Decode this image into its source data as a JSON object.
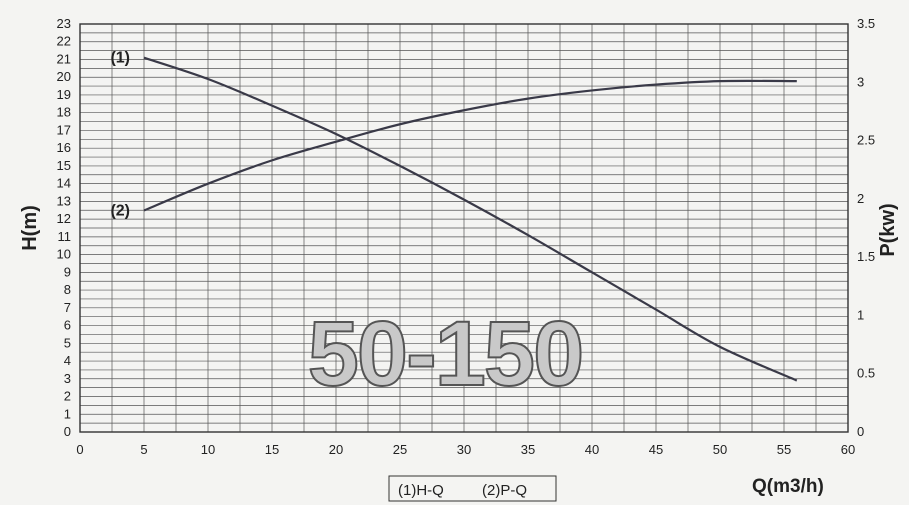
{
  "chart_data": {
    "type": "line",
    "x_title": "Q(m3/h)",
    "y_title": "H(m)",
    "y2_title": "P(kw)",
    "xlim": [
      0,
      60
    ],
    "ylim": [
      0,
      23
    ],
    "y2lim": [
      0,
      3.5
    ],
    "x_ticks": [
      "0",
      "5",
      "10",
      "15",
      "20",
      "25",
      "30",
      "35",
      "40",
      "45",
      "50",
      "55",
      "60"
    ],
    "y_ticks": [
      "0",
      "1",
      "2",
      "3",
      "4",
      "5",
      "6",
      "7",
      "8",
      "9",
      "10",
      "11",
      "12",
      "13",
      "14",
      "15",
      "16",
      "17",
      "18",
      "19",
      "20",
      "21",
      "22",
      "23"
    ],
    "y2_ticks": [
      "0",
      "0.5",
      "1",
      "1.5",
      "2",
      "2.5",
      "3",
      "3.5"
    ],
    "grid": true,
    "series": [
      {
        "name": "(1)H-Q",
        "label": "(1)",
        "axis": "left",
        "x": [
          5,
          10,
          15,
          20,
          25,
          30,
          35,
          40,
          45,
          50,
          56
        ],
        "y": [
          21.1,
          19.9,
          18.4,
          16.8,
          15.0,
          13.1,
          11.1,
          9.0,
          6.9,
          4.8,
          2.9
        ]
      },
      {
        "name": "(2)P-Q",
        "label": "(2)",
        "axis": "right",
        "x": [
          5,
          10,
          15,
          20,
          25,
          30,
          35,
          40,
          45,
          50,
          56
        ],
        "y": [
          1.9,
          2.13,
          2.33,
          2.49,
          2.64,
          2.76,
          2.86,
          2.93,
          2.98,
          3.01,
          3.01
        ]
      }
    ],
    "watermark": "50-150",
    "legend": [
      "(1)H-Q",
      "(2)P-Q"
    ],
    "legend_position": "bottom-center"
  }
}
